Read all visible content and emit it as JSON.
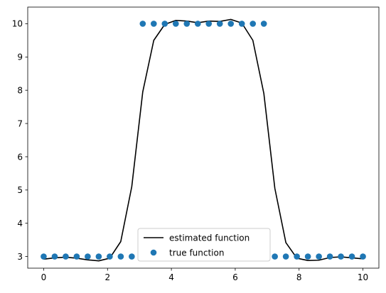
{
  "chart_data": {
    "type": "line",
    "title": "",
    "xlabel": "",
    "ylabel": "",
    "xlim": [
      -0.5,
      10.5
    ],
    "ylim": [
      2.65,
      10.5
    ],
    "grid": false,
    "legend_position": "lower-center",
    "xticks": [
      0,
      2,
      4,
      6,
      8,
      10
    ],
    "yticks": [
      3,
      4,
      5,
      6,
      7,
      8,
      9,
      10
    ],
    "xtick_labels": [
      "0",
      "2",
      "4",
      "6",
      "8",
      "10"
    ],
    "ytick_labels": [
      "3",
      "4",
      "5",
      "6",
      "7",
      "8",
      "9",
      "10"
    ],
    "series": [
      {
        "name": "estimated function",
        "kind": "line",
        "color": "#000000",
        "x": [
          0.0,
          0.345,
          0.69,
          1.034,
          1.379,
          1.724,
          2.069,
          2.414,
          2.759,
          3.103,
          3.448,
          3.793,
          4.138,
          4.483,
          4.828,
          5.172,
          5.517,
          5.862,
          6.207,
          6.552,
          6.897,
          7.241,
          7.586,
          7.931,
          8.276,
          8.621,
          8.966,
          9.31,
          9.655,
          10.0
        ],
        "y": [
          2.92,
          2.96,
          2.98,
          2.95,
          2.9,
          2.87,
          2.95,
          3.45,
          5.1,
          7.95,
          9.5,
          9.98,
          10.1,
          10.08,
          10.03,
          10.08,
          10.07,
          10.13,
          10.02,
          9.5,
          7.9,
          5.05,
          3.42,
          2.95,
          2.88,
          2.89,
          2.97,
          2.99,
          2.96,
          2.93
        ]
      },
      {
        "name": "true function",
        "kind": "scatter",
        "color": "#1f77b4",
        "x": [
          0.0,
          0.345,
          0.69,
          1.034,
          1.379,
          1.724,
          2.069,
          2.414,
          2.759,
          3.103,
          3.448,
          3.793,
          4.138,
          4.483,
          4.828,
          5.172,
          5.517,
          5.862,
          6.207,
          6.552,
          6.897,
          7.241,
          7.586,
          7.931,
          8.276,
          8.621,
          8.966,
          9.31,
          9.655,
          10.0
        ],
        "y": [
          3,
          3,
          3,
          3,
          3,
          3,
          3,
          3,
          3,
          10,
          10,
          10,
          10,
          10,
          10,
          10,
          10,
          10,
          10,
          10,
          10,
          3,
          3,
          3,
          3,
          3,
          3,
          3,
          3,
          3
        ]
      }
    ]
  }
}
